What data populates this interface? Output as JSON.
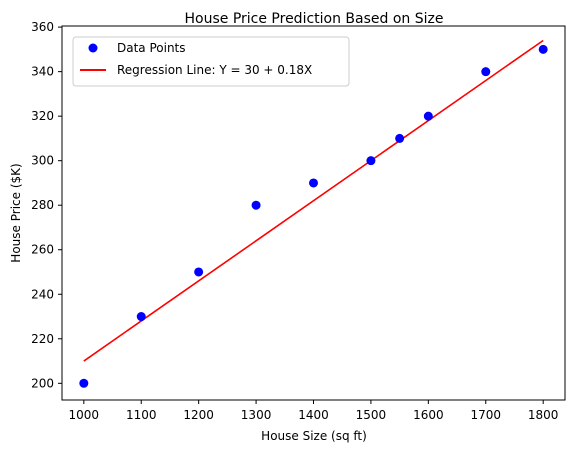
{
  "chart_data": {
    "type": "scatter",
    "title": "House Price Prediction Based on Size",
    "xlabel": "House Size (sq ft)",
    "ylabel": "House Price ($K)",
    "xlim": [
      962,
      1838
    ],
    "ylim": [
      192.5,
      360.5
    ],
    "xticks": [
      1000,
      1100,
      1200,
      1300,
      1400,
      1500,
      1600,
      1700,
      1800
    ],
    "yticks": [
      200,
      220,
      240,
      260,
      280,
      300,
      320,
      340,
      360
    ],
    "grid": false,
    "legend_position": "top-left",
    "series": [
      {
        "name": "Data Points",
        "type": "scatter",
        "color": "#0000ff",
        "x": [
          1000,
          1100,
          1200,
          1300,
          1400,
          1500,
          1550,
          1600,
          1700,
          1800
        ],
        "y": [
          200,
          230,
          250,
          280,
          290,
          300,
          310,
          320,
          340,
          350
        ]
      },
      {
        "name": "Regression Line: Y = 30 + 0.18X",
        "type": "line",
        "color": "#ff0000",
        "x": [
          1000,
          1800
        ],
        "y": [
          210,
          354
        ]
      }
    ]
  }
}
